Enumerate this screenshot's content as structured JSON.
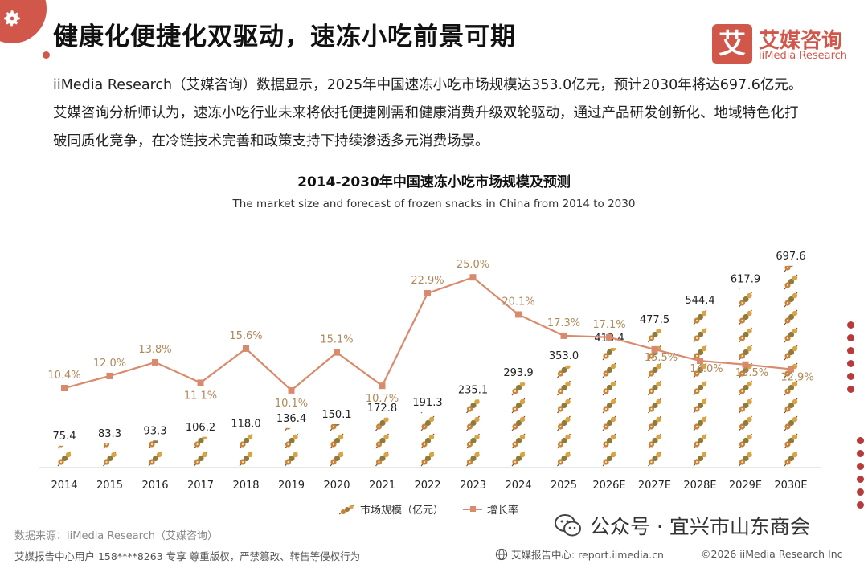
{
  "page": {
    "title": "健康化便捷化双驱动，速冻小吃前景可期",
    "intro": "iiMedia Research（艾媒咨询）数据显示，2025年中国速冻小吃市场规模达353.0亿元，预计2030年将达697.6亿元。艾媒咨询分析师认为，速冻小吃行业未来将依托便捷刚需和健康消费升级双轮驱动，通过产品研发创新化、地域特色化打破同质化竞争，在冷链技术完善和政策支持下持续渗透多元消费场景。"
  },
  "logo": {
    "mark": "艾",
    "cn": "艾媒咨询",
    "en": "iiMedia Research"
  },
  "colors": {
    "accent": "#d2574b",
    "line": "#d98a6c",
    "label": "#b0895a",
    "dots": "#b83a3a"
  },
  "chart_data": {
    "type": "bar+line",
    "title": "2014-2030年中国速冻小吃市场规模及预测",
    "subtitle": "The market size and forecast of frozen snacks in China from 2014 to 2030",
    "categories": [
      "2014",
      "2015",
      "2016",
      "2017",
      "2018",
      "2019",
      "2020",
      "2021",
      "2022",
      "2023",
      "2024",
      "2025",
      "2026E",
      "2027E",
      "2028E",
      "2029E",
      "2030E"
    ],
    "series": [
      {
        "name": "市场规模（亿元）",
        "type": "bar",
        "values": [
          75.4,
          83.3,
          93.3,
          106.2,
          118.0,
          136.4,
          150.1,
          172.8,
          191.3,
          235.1,
          293.9,
          353.0,
          413.4,
          477.5,
          544.4,
          617.9,
          697.6
        ],
        "labels": [
          "75.4",
          "83.3",
          "93.3",
          "106.2",
          "118.0",
          "136.4",
          "150.1",
          "172.8",
          "191.3",
          "235.1",
          "293.9",
          "353.0",
          "413.4",
          "477.5",
          "544.4",
          "617.9",
          "697.6"
        ]
      },
      {
        "name": "增长率",
        "type": "line",
        "values": [
          10.4,
          12.0,
          13.8,
          11.1,
          15.6,
          10.1,
          15.1,
          10.7,
          22.9,
          25.0,
          20.1,
          17.3,
          17.1,
          15.5,
          14.0,
          13.5,
          12.9
        ],
        "labels": [
          "10.4%",
          "12.0%",
          "13.8%",
          "11.1%",
          "15.6%",
          "10.1%",
          "15.1%",
          "10.7%",
          "22.9%",
          "25.0%",
          "20.1%",
          "17.3%",
          "17.1%",
          "15.5%",
          "14.0%",
          "13.5%",
          "12.9%"
        ]
      }
    ],
    "bar_ylim": [
      0,
      800
    ],
    "line_ylim": [
      5,
      30
    ]
  },
  "legend": {
    "bar": "市场规模（亿元）",
    "line": "增长率"
  },
  "source": "数据来源：iiMedia Research（艾媒咨询）",
  "footer": {
    "left": "艾媒报告中心用户 158****8263 专享 尊重版权，严禁篡改、转售等侵权行为",
    "center": "艾媒报告中心: report.iimedia.cn",
    "right": "©2026  iiMedia Research  Inc"
  },
  "watermark": "公众号 · 宜兴市山东商会"
}
